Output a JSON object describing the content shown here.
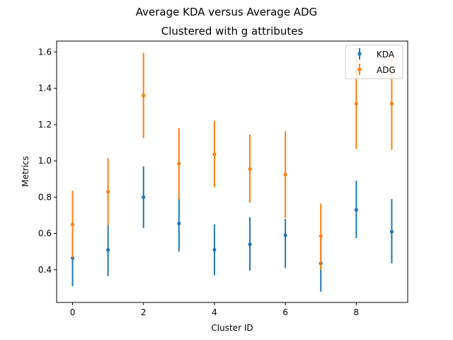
{
  "chart_data": {
    "type": "scatter",
    "suptitle": "Average KDA versus Average ADG",
    "title": "Clustered with g attributes",
    "xlabel": "Cluster ID",
    "ylabel": "Metrics",
    "xlim": [
      -0.45,
      9.45
    ],
    "ylim": [
      0.22,
      1.66
    ],
    "x_ticks": [
      0,
      2,
      4,
      6,
      8
    ],
    "x_tick_labels": [
      "0",
      "2",
      "4",
      "6",
      "8"
    ],
    "y_ticks": [
      0.4,
      0.6,
      0.8,
      1.0,
      1.2,
      1.4,
      1.6
    ],
    "y_tick_labels": [
      "0.4",
      "0.6",
      "0.8",
      "1.0",
      "1.2",
      "1.4",
      "1.6"
    ],
    "grid": false,
    "legend_position": "top-right",
    "x": [
      0,
      1,
      2,
      3,
      4,
      5,
      6,
      7,
      8,
      9
    ],
    "series": [
      {
        "name": "KDA",
        "color": "#1f77b4",
        "values": [
          0.465,
          0.51,
          0.8,
          0.655,
          0.51,
          0.54,
          0.59,
          0.435,
          0.73,
          0.61
        ],
        "err_low": [
          0.31,
          0.365,
          0.63,
          0.5,
          0.37,
          0.395,
          0.41,
          0.28,
          0.575,
          0.435
        ],
        "err_high": [
          0.62,
          0.65,
          0.97,
          0.8,
          0.65,
          0.69,
          0.68,
          0.59,
          0.89,
          0.79
        ]
      },
      {
        "name": "ADG",
        "color": "#ff7f0e",
        "values": [
          0.65,
          0.83,
          1.36,
          0.985,
          1.035,
          0.955,
          0.925,
          0.585,
          1.315,
          1.315
        ],
        "err_low": [
          0.465,
          0.645,
          1.125,
          0.79,
          0.855,
          0.77,
          0.685,
          0.4,
          1.065,
          1.06
        ],
        "err_high": [
          0.835,
          1.015,
          1.595,
          1.18,
          1.22,
          1.145,
          1.165,
          0.765,
          1.565,
          1.57
        ]
      }
    ]
  }
}
